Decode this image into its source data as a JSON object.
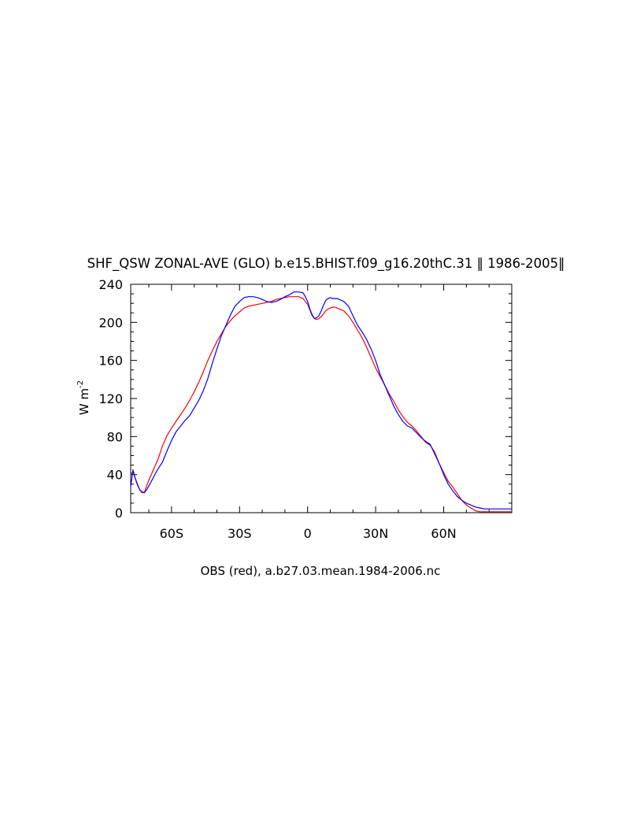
{
  "chart_data": {
    "type": "line",
    "title": "SHF_QSW ZONAL-AVE (GLO) b.e15.BHIST.f09_g16.20thC.31 ‖ 1986-2005‖",
    "xlabel": "OBS (red), a.b27.03.mean.1984-2006.nc",
    "ylabel": "W m",
    "ylabel_superscript": "-2",
    "xlim": [
      -78,
      90
    ],
    "ylim": [
      0,
      240
    ],
    "x_ticks": [
      {
        "value": -60,
        "label": "60S"
      },
      {
        "value": -30,
        "label": "30S"
      },
      {
        "value": 0,
        "label": "0"
      },
      {
        "value": 30,
        "label": "30N"
      },
      {
        "value": 60,
        "label": "60N"
      }
    ],
    "y_ticks": [
      {
        "value": 0,
        "label": "0"
      },
      {
        "value": 40,
        "label": "40"
      },
      {
        "value": 80,
        "label": "80"
      },
      {
        "value": 120,
        "label": "120"
      },
      {
        "value": 160,
        "label": "160"
      },
      {
        "value": 200,
        "label": "200"
      },
      {
        "value": 240,
        "label": "240"
      }
    ],
    "grid": false,
    "series": [
      {
        "color": "#0000ff",
        "x": [
          -78,
          -77,
          -76,
          -75,
          -74,
          -73,
          -72,
          -71,
          -70,
          -68,
          -66,
          -64,
          -62,
          -60,
          -58,
          -56,
          -54,
          -52,
          -50,
          -48,
          -46,
          -44,
          -42,
          -40,
          -38,
          -36,
          -34,
          -32,
          -30,
          -28,
          -26,
          -24,
          -22,
          -20,
          -18,
          -16,
          -14,
          -12,
          -10,
          -8,
          -6,
          -4,
          -2,
          -1,
          0,
          1,
          2,
          3,
          4,
          5,
          6,
          7,
          8,
          9,
          10,
          11,
          12,
          13,
          14,
          16,
          18,
          20,
          22,
          24,
          26,
          28,
          30,
          32,
          34,
          36,
          38,
          40,
          42,
          44,
          46,
          48,
          50,
          52,
          54,
          56,
          58,
          60,
          62,
          64,
          66,
          68,
          70,
          72,
          74,
          76,
          78,
          80,
          82,
          84,
          86,
          88,
          90
        ],
        "values": [
          27,
          45,
          36,
          30,
          24,
          22,
          21,
          24,
          28,
          37,
          46,
          53,
          65,
          76,
          85,
          91,
          97,
          102,
          110,
          118,
          128,
          141,
          157,
          172,
          186,
          197,
          208,
          217,
          222,
          226,
          227,
          227,
          226,
          224,
          222,
          221,
          222,
          224,
          227,
          229,
          232,
          232,
          231,
          227,
          222,
          214,
          208,
          204,
          205,
          207,
          212,
          218,
          223,
          225,
          226,
          225,
          225,
          225,
          224,
          222,
          217,
          207,
          197,
          190,
          182,
          172,
          160,
          145,
          134,
          123,
          112,
          103,
          96,
          91,
          89,
          84,
          79,
          75,
          72,
          62,
          52,
          40,
          30,
          23,
          17,
          13,
          10,
          8,
          6,
          5,
          4,
          4,
          4,
          4,
          4,
          4,
          4
        ]
      },
      {
        "color": "#ff0000",
        "x": [
          -78,
          -77,
          -76,
          -75,
          -74,
          -73,
          -72,
          -71,
          -70,
          -68,
          -66,
          -64,
          -62,
          -60,
          -58,
          -56,
          -54,
          -52,
          -50,
          -48,
          -46,
          -44,
          -42,
          -40,
          -38,
          -36,
          -34,
          -32,
          -30,
          -28,
          -26,
          -24,
          -22,
          -20,
          -18,
          -16,
          -14,
          -12,
          -10,
          -8,
          -6,
          -4,
          -2,
          -1,
          0,
          1,
          2,
          3,
          4,
          5,
          6,
          7,
          8,
          9,
          10,
          11,
          12,
          13,
          14,
          16,
          18,
          20,
          22,
          24,
          26,
          28,
          30,
          32,
          34,
          36,
          38,
          40,
          42,
          44,
          46,
          48,
          50,
          52,
          54,
          56,
          58,
          60,
          62,
          64,
          66,
          68,
          70,
          72,
          74,
          76,
          78,
          80,
          82,
          84,
          86,
          88,
          90
        ],
        "values": [
          40,
          43,
          36,
          29,
          24,
          21,
          21,
          28,
          34,
          45,
          56,
          70,
          81,
          89,
          96,
          103,
          110,
          118,
          127,
          137,
          148,
          160,
          170,
          180,
          188,
          196,
          202,
          207,
          211,
          215,
          217,
          218,
          219,
          220,
          221,
          222,
          224,
          225,
          226,
          227,
          227,
          227,
          225,
          222,
          219,
          213,
          207,
          204,
          203,
          204,
          206,
          209,
          212,
          214,
          215,
          216,
          216,
          215,
          214,
          212,
          207,
          200,
          192,
          184,
          174,
          163,
          152,
          143,
          134,
          125,
          117,
          108,
          101,
          95,
          91,
          86,
          80,
          74,
          71,
          64,
          52,
          42,
          33,
          27,
          20,
          13,
          8,
          5,
          2,
          1,
          1,
          1,
          1,
          1,
          1,
          1,
          1
        ]
      }
    ]
  }
}
